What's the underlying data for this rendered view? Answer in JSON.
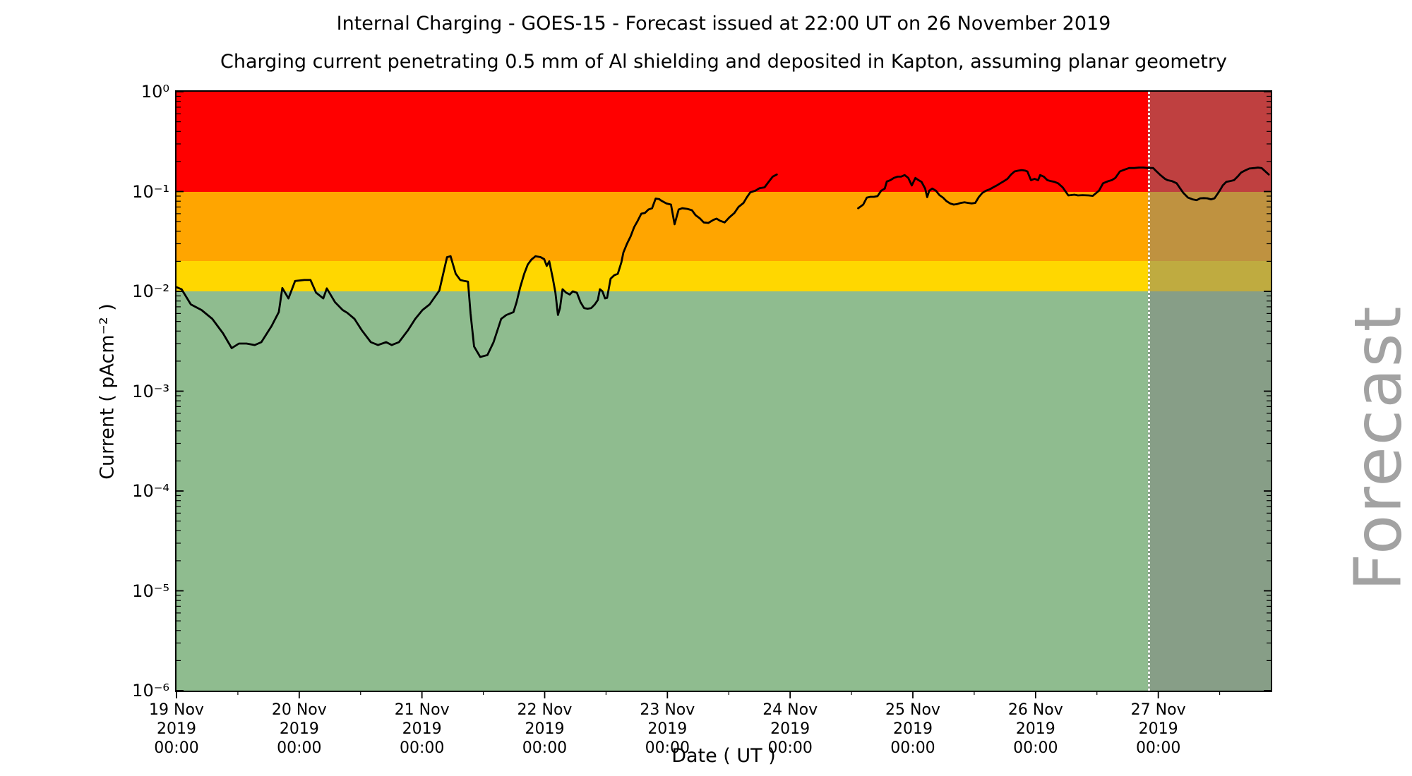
{
  "figure": {
    "title": "Internal Charging - GOES-15 - Forecast issued at 22:00 UT on 26 November 2019",
    "subtitle": "Charging current penetrating 0.5 mm of Al shielding and deposited in Kapton, assuming planar geometry"
  },
  "chart_data": {
    "type": "line",
    "title": "Internal Charging - GOES-15 - Forecast issued at 22:00 UT on 26 November 2019",
    "subtitle": "Charging current penetrating 0.5 mm of Al shielding and deposited in Kapton, assuming planar geometry",
    "xlabel": "Date ( UT )",
    "ylabel": "Current ( pAcm⁻² )",
    "x_unit": "hours since 19 Nov 2019 00:00 UT",
    "x_range_hours": [
      0,
      214
    ],
    "y_scale": "log",
    "ylim": [
      1e-06,
      1
    ],
    "grid": false,
    "legend": "none",
    "line_color": "#000000",
    "forecast_start_hours": 190,
    "forecast_divider_style": "white dotted vertical line",
    "forecast_overlay_color": "rgba(128,128,128,0.5)",
    "forecast_label": "Forecast",
    "bands": [
      {
        "name": "red",
        "from": 0.1,
        "to": 1.0,
        "color": "#ff0000"
      },
      {
        "name": "orange",
        "from": 0.02,
        "to": 0.1,
        "color": "#ffa500"
      },
      {
        "name": "yellow",
        "from": 0.01,
        "to": 0.02,
        "color": "#ffd700"
      },
      {
        "name": "green",
        "from": 1e-06,
        "to": 0.01,
        "color": "#8fbc8f"
      }
    ],
    "x_major_ticks": [
      {
        "t": 0,
        "lines": [
          "19 Nov",
          "2019",
          "00:00"
        ]
      },
      {
        "t": 24,
        "lines": [
          "20 Nov",
          "2019",
          "00:00"
        ]
      },
      {
        "t": 48,
        "lines": [
          "21 Nov",
          "2019",
          "00:00"
        ]
      },
      {
        "t": 72,
        "lines": [
          "22 Nov",
          "2019",
          "00:00"
        ]
      },
      {
        "t": 96,
        "lines": [
          "23 Nov",
          "2019",
          "00:00"
        ]
      },
      {
        "t": 120,
        "lines": [
          "24 Nov",
          "2019",
          "00:00"
        ]
      },
      {
        "t": 144,
        "lines": [
          "25 Nov",
          "2019",
          "00:00"
        ]
      },
      {
        "t": 168,
        "lines": [
          "26 Nov",
          "2019",
          "00:00"
        ]
      },
      {
        "t": 192,
        "lines": [
          "27 Nov",
          "2019",
          "00:00"
        ]
      }
    ],
    "x_minor_tick_interval_hours": 12,
    "y_major_ticks": [
      {
        "v": 1,
        "label": "10⁰"
      },
      {
        "v": 0.1,
        "label": "10⁻¹"
      },
      {
        "v": 0.01,
        "label": "10⁻²"
      },
      {
        "v": 0.001,
        "label": "10⁻³"
      },
      {
        "v": 0.0001,
        "label": "10⁻⁴"
      },
      {
        "v": 1e-05,
        "label": "10⁻⁵"
      },
      {
        "v": 1e-06,
        "label": "10⁻⁶"
      }
    ],
    "series": [
      {
        "name": "observed-segment-1",
        "role": "observed",
        "points": [
          [
            0,
            0.011
          ],
          [
            1,
            0.0105
          ],
          [
            2.8,
            0.0074
          ],
          [
            4.9,
            0.0065
          ],
          [
            7,
            0.0053
          ],
          [
            9.1,
            0.0038
          ],
          [
            10.8,
            0.0027
          ],
          [
            12.2,
            0.003
          ],
          [
            13.7,
            0.003
          ],
          [
            15.3,
            0.0029
          ],
          [
            16.6,
            0.0031
          ],
          [
            18.6,
            0.0045
          ],
          [
            20,
            0.0062
          ],
          [
            20.7,
            0.0108
          ],
          [
            21.9,
            0.0085
          ],
          [
            23.2,
            0.0127
          ],
          [
            25,
            0.013
          ],
          [
            26.2,
            0.013
          ],
          [
            27.3,
            0.0097
          ],
          [
            28.7,
            0.0085
          ],
          [
            29.4,
            0.0107
          ],
          [
            31,
            0.0078
          ],
          [
            32.5,
            0.0065
          ],
          [
            33.4,
            0.0061
          ],
          [
            34.8,
            0.0053
          ],
          [
            36.2,
            0.0041
          ],
          [
            38,
            0.0031
          ],
          [
            39.4,
            0.0029
          ],
          [
            41,
            0.0031
          ],
          [
            42.1,
            0.0029
          ],
          [
            43.5,
            0.0031
          ],
          [
            45.3,
            0.0041
          ],
          [
            46.7,
            0.0053
          ],
          [
            48.1,
            0.0065
          ],
          [
            49.5,
            0.0074
          ],
          [
            51.4,
            0.0102
          ],
          [
            52.9,
            0.022
          ],
          [
            53.6,
            0.0225
          ],
          [
            54.6,
            0.015
          ],
          [
            55.5,
            0.013
          ],
          [
            56.3,
            0.0127
          ],
          [
            57,
            0.0125
          ],
          [
            57.5,
            0.006
          ],
          [
            58.2,
            0.0028
          ],
          [
            59.4,
            0.0022
          ],
          [
            60.8,
            0.0023
          ],
          [
            62,
            0.0031
          ],
          [
            63.5,
            0.0053
          ],
          [
            64.5,
            0.0058
          ],
          [
            65.9,
            0.0062
          ],
          [
            66.5,
            0.0078
          ],
          [
            67.2,
            0.0109
          ],
          [
            68,
            0.015
          ],
          [
            68.7,
            0.0186
          ],
          [
            69.4,
            0.0208
          ],
          [
            70.2,
            0.0225
          ],
          [
            71.2,
            0.022
          ],
          [
            71.9,
            0.021
          ],
          [
            72.4,
            0.018
          ],
          [
            72.9,
            0.02
          ],
          [
            73.6,
            0.0134
          ],
          [
            74.1,
            0.0097
          ],
          [
            74.6,
            0.0058
          ],
          [
            75,
            0.0068
          ],
          [
            75.5,
            0.0105
          ],
          [
            76.2,
            0.0097
          ],
          [
            76.9,
            0.0093
          ],
          [
            77.5,
            0.01
          ],
          [
            78.3,
            0.0097
          ],
          [
            79,
            0.0078
          ],
          [
            79.7,
            0.0068
          ],
          [
            80.4,
            0.0067
          ],
          [
            81.1,
            0.0068
          ],
          [
            81.8,
            0.0074
          ],
          [
            82.4,
            0.0082
          ],
          [
            82.8,
            0.0105
          ],
          [
            83.3,
            0.01
          ],
          [
            83.8,
            0.0085
          ],
          [
            84.2,
            0.0086
          ],
          [
            84.9,
            0.0134
          ],
          [
            85.6,
            0.0145
          ],
          [
            86.3,
            0.015
          ],
          [
            87,
            0.0195
          ],
          [
            87.4,
            0.0245
          ],
          [
            88.1,
            0.03
          ],
          [
            88.8,
            0.0355
          ],
          [
            89.5,
            0.044
          ],
          [
            90.2,
            0.051
          ],
          [
            90.9,
            0.06
          ],
          [
            91.6,
            0.061
          ],
          [
            92.3,
            0.066
          ],
          [
            93,
            0.068
          ],
          [
            93.7,
            0.085
          ],
          [
            94.4,
            0.084
          ],
          [
            94.8,
            0.081
          ],
          [
            95.8,
            0.076
          ],
          [
            96.7,
            0.074
          ],
          [
            97.4,
            0.047
          ],
          [
            98.2,
            0.066
          ],
          [
            98.9,
            0.068
          ],
          [
            99.9,
            0.067
          ],
          [
            100.8,
            0.065
          ],
          [
            101.5,
            0.058
          ],
          [
            102.4,
            0.0535
          ],
          [
            103.1,
            0.049
          ],
          [
            104,
            0.0485
          ],
          [
            105,
            0.052
          ],
          [
            105.6,
            0.0535
          ],
          [
            106.3,
            0.051
          ],
          [
            107.2,
            0.049
          ],
          [
            108.1,
            0.055
          ],
          [
            109.1,
            0.061
          ],
          [
            109.9,
            0.07
          ],
          [
            110.9,
            0.077
          ],
          [
            111.5,
            0.087
          ],
          [
            112.2,
            0.098
          ],
          [
            113.2,
            0.102
          ],
          [
            114,
            0.108
          ],
          [
            115,
            0.11
          ],
          [
            115.9,
            0.127
          ],
          [
            116.6,
            0.141
          ],
          [
            117.4,
            0.148
          ]
        ]
      },
      {
        "name": "observed-segment-2",
        "role": "observed",
        "points": [
          [
            133.3,
            0.068
          ],
          [
            134.3,
            0.074
          ],
          [
            135,
            0.087
          ],
          [
            135.7,
            0.0885
          ],
          [
            136.4,
            0.0885
          ],
          [
            137.1,
            0.09
          ],
          [
            137.8,
            0.102
          ],
          [
            138.5,
            0.107
          ],
          [
            138.9,
            0.126
          ],
          [
            139.6,
            0.13
          ],
          [
            140.3,
            0.137
          ],
          [
            141,
            0.141
          ],
          [
            141.7,
            0.141
          ],
          [
            142.4,
            0.146
          ],
          [
            143.1,
            0.137
          ],
          [
            143.8,
            0.115
          ],
          [
            144.5,
            0.137
          ],
          [
            145,
            0.131
          ],
          [
            145.7,
            0.125
          ],
          [
            146.4,
            0.107
          ],
          [
            146.8,
            0.088
          ],
          [
            147.2,
            0.102
          ],
          [
            147.8,
            0.107
          ],
          [
            148.5,
            0.102
          ],
          [
            149.2,
            0.092
          ],
          [
            149.9,
            0.087
          ],
          [
            150.6,
            0.08
          ],
          [
            151.3,
            0.076
          ],
          [
            152,
            0.074
          ],
          [
            152.7,
            0.075
          ],
          [
            153.4,
            0.077
          ],
          [
            154.1,
            0.078
          ],
          [
            154.8,
            0.077
          ],
          [
            155.5,
            0.076
          ],
          [
            156.2,
            0.077
          ],
          [
            156.9,
            0.088
          ],
          [
            157.6,
            0.097
          ],
          [
            158.3,
            0.102
          ],
          [
            159,
            0.105
          ],
          [
            159.7,
            0.11
          ],
          [
            160.4,
            0.115
          ],
          [
            161.1,
            0.121
          ],
          [
            161.8,
            0.127
          ],
          [
            162.5,
            0.134
          ],
          [
            163.2,
            0.148
          ],
          [
            163.9,
            0.159
          ],
          [
            164.6,
            0.162
          ],
          [
            165.3,
            0.164
          ],
          [
            166,
            0.162
          ],
          [
            166.4,
            0.159
          ],
          [
            167.1,
            0.13
          ],
          [
            167.8,
            0.134
          ],
          [
            168.5,
            0.13
          ],
          [
            168.9,
            0.146
          ],
          [
            169.6,
            0.141
          ],
          [
            170.3,
            0.13
          ],
          [
            171,
            0.127
          ],
          [
            171.7,
            0.125
          ],
          [
            172.4,
            0.121
          ],
          [
            173.3,
            0.11
          ],
          [
            174.4,
            0.0915
          ],
          [
            175.6,
            0.093
          ],
          [
            176.3,
            0.0915
          ],
          [
            177.2,
            0.092
          ],
          [
            178.4,
            0.0915
          ],
          [
            179.2,
            0.0905
          ],
          [
            180.4,
            0.102
          ],
          [
            181.2,
            0.121
          ],
          [
            182.2,
            0.127
          ],
          [
            182.9,
            0.13
          ],
          [
            183.6,
            0.137
          ],
          [
            184.5,
            0.159
          ],
          [
            185.4,
            0.166
          ],
          [
            186.3,
            0.172
          ],
          [
            187.3,
            0.172
          ],
          [
            188.2,
            0.174
          ],
          [
            189.1,
            0.174
          ],
          [
            190,
            0.172
          ]
        ]
      },
      {
        "name": "forecast-segment",
        "role": "forecast",
        "points": [
          [
            190,
            0.172
          ],
          [
            191,
            0.172
          ],
          [
            191.5,
            0.162
          ],
          [
            192.3,
            0.148
          ],
          [
            193.3,
            0.134
          ],
          [
            193.8,
            0.13
          ],
          [
            194.7,
            0.127
          ],
          [
            195.6,
            0.121
          ],
          [
            196.3,
            0.107
          ],
          [
            196.9,
            0.097
          ],
          [
            197.8,
            0.087
          ],
          [
            198.7,
            0.0835
          ],
          [
            199.5,
            0.082
          ],
          [
            200.2,
            0.0855
          ],
          [
            200.9,
            0.086
          ],
          [
            201.6,
            0.0855
          ],
          [
            202.3,
            0.0835
          ],
          [
            203,
            0.0855
          ],
          [
            204,
            0.102
          ],
          [
            204.6,
            0.115
          ],
          [
            205.3,
            0.125
          ],
          [
            206,
            0.127
          ],
          [
            206.8,
            0.13
          ],
          [
            207.5,
            0.141
          ],
          [
            208.2,
            0.155
          ],
          [
            208.9,
            0.162
          ],
          [
            209.8,
            0.17
          ],
          [
            210.8,
            0.172
          ],
          [
            211.5,
            0.174
          ],
          [
            212.2,
            0.172
          ],
          [
            213.6,
            0.148
          ]
        ]
      }
    ],
    "data_gap_hours": [
      117.4,
      133.3
    ]
  }
}
